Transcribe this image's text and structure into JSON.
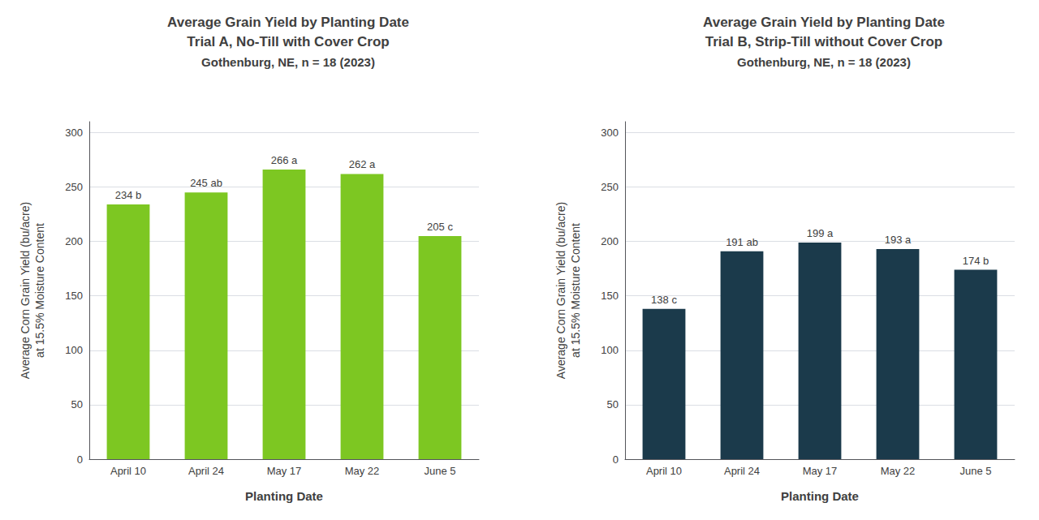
{
  "chart_data": [
    {
      "type": "bar",
      "title": "Average Grain Yield by Planting Date\nTrial A, No-Till with Cover Crop",
      "subtitle": "Gothenburg, NE, n = 18 (2023)",
      "categories": [
        "April 10",
        "April 24",
        "May 17",
        "May 22",
        "June 5"
      ],
      "values": [
        234,
        245,
        266,
        262,
        205
      ],
      "value_labels": [
        "234 b",
        "245 ab",
        "266 a",
        "262 a",
        "205 c"
      ],
      "data_labels": true,
      "color": "#7DC722",
      "xlabel": "Planting Date",
      "ylabel": "Average Corn Grain Yield (bu/acre)\nat 15.5% Moisture Content",
      "ylim": [
        0,
        310
      ],
      "yticks": [
        0,
        50,
        100,
        150,
        200,
        250,
        300
      ],
      "grid": true
    },
    {
      "type": "bar",
      "title": "Average Grain Yield by Planting Date\nTrial B, Strip-Till without Cover Crop",
      "subtitle": "Gothenburg, NE, n = 18 (2023)",
      "categories": [
        "April 10",
        "April 24",
        "May 17",
        "May 22",
        "June 5"
      ],
      "values": [
        138,
        191,
        199,
        193,
        174
      ],
      "value_labels": [
        "138 c",
        "191 ab",
        "199 a",
        "193 a",
        "174 b"
      ],
      "data_labels": true,
      "color": "#1B3A4B",
      "xlabel": "Planting Date",
      "ylabel": "Average Corn Grain Yield (bu/acre)\nat 15.5% Moisture Content",
      "ylim": [
        0,
        310
      ],
      "yticks": [
        0,
        50,
        100,
        150,
        200,
        250,
        300
      ],
      "grid": true
    }
  ]
}
